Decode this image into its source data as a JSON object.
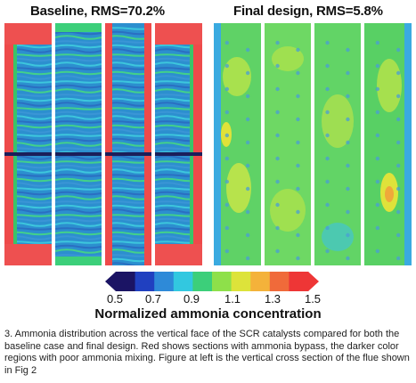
{
  "panels": {
    "left_title": "Baseline, RMS=70.2%",
    "right_title": "Final design, RMS=5.8%"
  },
  "colorbar": {
    "ticks": [
      "0.5",
      "0.7",
      "0.9",
      "1.1",
      "1.3",
      "1.5"
    ],
    "label": "Normalized ammonia concentration",
    "colors": [
      "#1b1464",
      "#2040c0",
      "#2e8ad8",
      "#32c8e0",
      "#3ccf7a",
      "#8ee04a",
      "#dde33a",
      "#f4b23a",
      "#f06a3a",
      "#ee3636"
    ]
  },
  "caption": "3. Ammonia distribution across the vertical face of the SCR catalysts compared for both the baseline case and final design. Red shows sections with ammonia bypass, the darker color regions with poor ammonia mixing.  Figure at left is the vertical cross section of the flue shown in Fig 2"
}
